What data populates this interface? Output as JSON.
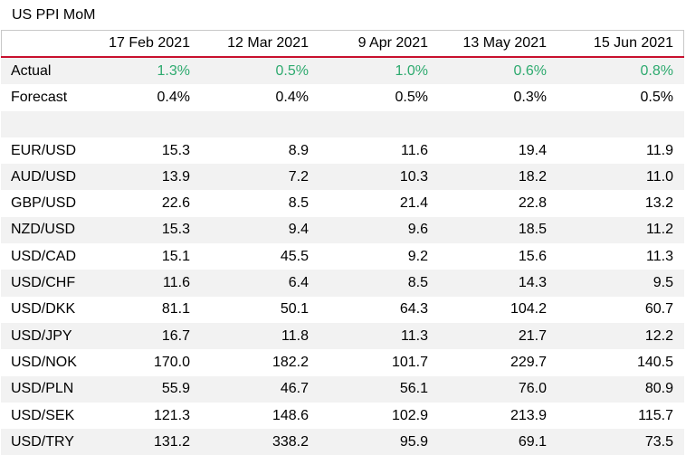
{
  "title": "US PPI MoM",
  "colors": {
    "accent_line": "#c8102e",
    "actual_value": "#2eaa6f",
    "stripe": "#f2f2f2"
  },
  "columns": [
    "",
    "17 Feb 2021",
    "12 Mar 2021",
    "9 Apr 2021",
    "13 May 2021",
    "15 Jun 2021"
  ],
  "actual": {
    "label": "Actual",
    "values": [
      "1.3%",
      "0.5%",
      "1.0%",
      "0.6%",
      "0.8%"
    ]
  },
  "forecast": {
    "label": "Forecast",
    "values": [
      "0.4%",
      "0.4%",
      "0.5%",
      "0.3%",
      "0.5%"
    ]
  },
  "pairs": [
    {
      "label": "EUR/USD",
      "values": [
        "15.3",
        "8.9",
        "11.6",
        "19.4",
        "11.9"
      ]
    },
    {
      "label": "AUD/USD",
      "values": [
        "13.9",
        "7.2",
        "10.3",
        "18.2",
        "11.0"
      ]
    },
    {
      "label": "GBP/USD",
      "values": [
        "22.6",
        "8.5",
        "21.4",
        "22.8",
        "13.2"
      ]
    },
    {
      "label": "NZD/USD",
      "values": [
        "15.3",
        "9.4",
        "9.6",
        "18.5",
        "11.2"
      ]
    },
    {
      "label": "USD/CAD",
      "values": [
        "15.1",
        "45.5",
        "9.2",
        "15.6",
        "11.3"
      ]
    },
    {
      "label": "USD/CHF",
      "values": [
        "11.6",
        "6.4",
        "8.5",
        "14.3",
        "9.5"
      ]
    },
    {
      "label": "USD/DKK",
      "values": [
        "81.1",
        "50.1",
        "64.3",
        "104.2",
        "60.7"
      ]
    },
    {
      "label": "USD/JPY",
      "values": [
        "16.7",
        "11.8",
        "11.3",
        "21.7",
        "12.2"
      ]
    },
    {
      "label": "USD/NOK",
      "values": [
        "170.0",
        "182.2",
        "101.7",
        "229.7",
        "140.5"
      ]
    },
    {
      "label": "USD/PLN",
      "values": [
        "55.9",
        "46.7",
        "56.1",
        "76.0",
        "80.9"
      ]
    },
    {
      "label": "USD/SEK",
      "values": [
        "121.3",
        "148.6",
        "102.9",
        "213.9",
        "115.7"
      ]
    },
    {
      "label": "USD/TRY",
      "values": [
        "131.2",
        "338.2",
        "95.9",
        "69.1",
        "73.5"
      ]
    }
  ]
}
